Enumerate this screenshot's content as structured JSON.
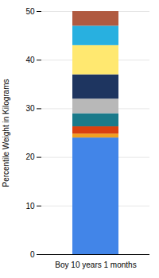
{
  "chart_data": {
    "type": "bar",
    "stacked": true,
    "categories": [
      "Boy 10 years 1 months"
    ],
    "series": [
      {
        "color": "#4285e8",
        "values": [
          24.0
        ]
      },
      {
        "color": "#f0a020",
        "values": [
          0.8
        ]
      },
      {
        "color": "#d94010",
        "values": [
          1.5
        ]
      },
      {
        "color": "#1a7a8a",
        "values": [
          2.7
        ]
      },
      {
        "color": "#b8b8b8",
        "values": [
          3.0
        ]
      },
      {
        "color": "#1e3560",
        "values": [
          5.0
        ]
      },
      {
        "color": "#ffe870",
        "values": [
          6.0
        ]
      },
      {
        "color": "#28b0e0",
        "values": [
          4.0
        ]
      },
      {
        "color": "#b05a40",
        "values": [
          3.0
        ]
      }
    ],
    "ylabel": "Percentile Weight in Kilograms",
    "ylim": [
      0,
      50
    ],
    "yticks": [
      0,
      10,
      20,
      30,
      40,
      50
    ],
    "grid": true
  }
}
